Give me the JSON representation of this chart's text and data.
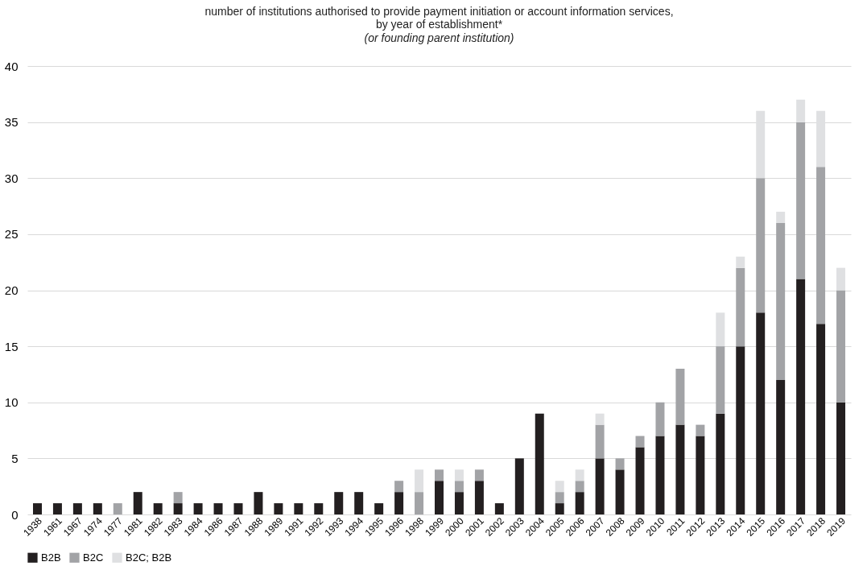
{
  "chart_data": {
    "type": "bar",
    "stacked": true,
    "title": "number of  institutions authorised to provide payment initiation or account information services,\nby year of establishment*",
    "subtitle": "(or founding parent institution)",
    "categories": [
      "1938",
      "1961",
      "1967",
      "1974",
      "1977",
      "1981",
      "1982",
      "1983",
      "1984",
      "1986",
      "1987",
      "1988",
      "1989",
      "1991",
      "1992",
      "1993",
      "1994",
      "1995",
      "1996",
      "1998",
      "1999",
      "2000",
      "2001",
      "2002",
      "2003",
      "2004",
      "2005",
      "2006",
      "2007",
      "2008",
      "2009",
      "2010",
      "2011",
      "2012",
      "2013",
      "2014",
      "2015",
      "2016",
      "2017",
      "2018",
      "2019"
    ],
    "series": [
      {
        "name": "B2B",
        "color": "#231f20",
        "values": [
          1,
          1,
          1,
          1,
          null,
          2,
          1,
          1,
          1,
          1,
          1,
          2,
          1,
          1,
          1,
          2,
          2,
          1,
          2,
          null,
          3,
          2,
          3,
          1,
          5,
          9,
          1,
          2,
          5,
          4,
          6,
          7,
          8,
          7,
          9,
          15,
          18,
          12,
          21,
          17,
          10
        ]
      },
      {
        "name": "B2C",
        "color": "#a2a3a6",
        "values": [
          null,
          null,
          null,
          null,
          1,
          null,
          null,
          1,
          null,
          null,
          null,
          null,
          null,
          null,
          null,
          null,
          null,
          null,
          1,
          2,
          1,
          1,
          1,
          null,
          null,
          null,
          1,
          1,
          3,
          1,
          1,
          3,
          5,
          1,
          6,
          7,
          12,
          14,
          14,
          14,
          10
        ]
      },
      {
        "name": "B2C; B2B",
        "color": "#dfe0e2",
        "values": [
          null,
          null,
          null,
          null,
          null,
          null,
          null,
          null,
          null,
          null,
          null,
          null,
          null,
          null,
          null,
          null,
          null,
          null,
          null,
          2,
          null,
          1,
          null,
          null,
          null,
          null,
          1,
          1,
          1,
          null,
          null,
          null,
          null,
          null,
          3,
          1,
          6,
          1,
          2,
          5,
          2
        ]
      }
    ],
    "ylim": [
      0,
      40
    ],
    "yticks": [
      0,
      5,
      10,
      15,
      20,
      25,
      30,
      35,
      40
    ],
    "grid": "y",
    "legend": "bottom"
  }
}
